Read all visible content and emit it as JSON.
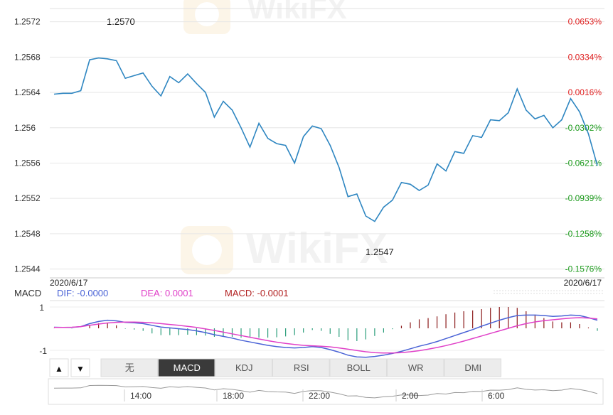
{
  "colors": {
    "price_line": "#2e86c1",
    "grid": "#e6e6e6",
    "pct_up": "#e02020",
    "pct_down": "#1a9a1a",
    "dif_line": "#4a63d6",
    "dea_line": "#e040c8",
    "macd_label": "#b22222",
    "hist_pos": "#8b1a1a",
    "hist_neg": "#2a9d7a",
    "tab_active_bg": "#3a3a3a",
    "tab_bg": "#ececec"
  },
  "price_chart": {
    "start_date_label": "2020/6/17",
    "end_date_label": "2020/6/17",
    "high_label": "1.2570",
    "low_label": "1.2547"
  },
  "macd_panel": {
    "name": "MACD",
    "dif_label": "DIF: -0.0000",
    "dea_label": "DEA: 0.0001",
    "macd_label": "MACD: -0.0001",
    "y_ticks": [
      "1",
      "-1"
    ]
  },
  "controls": {
    "up_arrow": "▲",
    "down_arrow": "▼",
    "tabs": [
      {
        "label": "无",
        "active": false
      },
      {
        "label": "MACD",
        "active": true
      },
      {
        "label": "KDJ",
        "active": false
      },
      {
        "label": "RSI",
        "active": false
      },
      {
        "label": "BOLL",
        "active": false
      },
      {
        "label": "WR",
        "active": false
      },
      {
        "label": "DMI",
        "active": false
      }
    ]
  },
  "navigator": {
    "time_labels": [
      "14:00",
      "18:00",
      "22:00",
      "2:00",
      "6:00"
    ]
  },
  "chart_data": {
    "type": "line",
    "ylim": [
      1.2543,
      1.25735
    ],
    "y_ticks": [
      "1.2572",
      "1.2568",
      "1.2564",
      "1.256",
      "1.2556",
      "1.2552",
      "1.2548",
      "1.2544"
    ],
    "y_tick_values": [
      1.2572,
      1.2568,
      1.2564,
      1.256,
      1.2556,
      1.2552,
      1.2548,
      1.2544
    ],
    "right_ticks": [
      "0.0653%",
      "0.0334%",
      "0.0016%",
      "-0.0302%",
      "-0.0621%",
      "-0.0939%",
      "-0.1258%",
      "-0.1576%"
    ],
    "right_tick_values": [
      0.0653,
      0.0334,
      0.0016,
      -0.0302,
      -0.0621,
      -0.0939,
      -0.1258,
      -0.1576
    ],
    "series": [
      {
        "values": [
          1.25638,
          1.25639,
          1.25639,
          1.25642,
          1.25677,
          1.25679,
          1.25678,
          1.25676,
          1.25656,
          1.25659,
          1.25662,
          1.25647,
          1.25636,
          1.25658,
          1.25651,
          1.25661,
          1.2565,
          1.2564,
          1.25612,
          1.2563,
          1.2562,
          1.256,
          1.25578,
          1.25605,
          1.25588,
          1.25582,
          1.2558,
          1.2556,
          1.2559,
          1.25602,
          1.25599,
          1.2558,
          1.25555,
          1.25522,
          1.25525,
          1.255,
          1.25494,
          1.2551,
          1.25518,
          1.25538,
          1.25536,
          1.25529,
          1.25535,
          1.25559,
          1.25551,
          1.25573,
          1.25571,
          1.25591,
          1.25589,
          1.25609,
          1.25608,
          1.25617,
          1.25644,
          1.2562,
          1.2561,
          1.25614,
          1.256,
          1.25609,
          1.25633,
          1.25618,
          1.25593,
          1.25557
        ]
      }
    ],
    "macd": {
      "dif": [
        0.05,
        0.04,
        0.04,
        0.08,
        0.22,
        0.32,
        0.38,
        0.35,
        0.28,
        0.26,
        0.22,
        0.14,
        0.06,
        0.02,
        -0.02,
        -0.06,
        -0.12,
        -0.2,
        -0.3,
        -0.38,
        -0.46,
        -0.56,
        -0.64,
        -0.72,
        -0.8,
        -0.86,
        -0.9,
        -0.92,
        -0.9,
        -0.86,
        -0.9,
        -1.0,
        -1.12,
        -1.26,
        -1.34,
        -1.36,
        -1.32,
        -1.26,
        -1.18,
        -1.08,
        -0.96,
        -0.84,
        -0.74,
        -0.62,
        -0.48,
        -0.34,
        -0.2,
        -0.06,
        0.1,
        0.24,
        0.38,
        0.5,
        0.6,
        0.62,
        0.62,
        0.6,
        0.56,
        0.58,
        0.62,
        0.6,
        0.5,
        0.38
      ],
      "dea": [
        0.04,
        0.04,
        0.05,
        0.08,
        0.14,
        0.2,
        0.25,
        0.28,
        0.29,
        0.29,
        0.28,
        0.26,
        0.22,
        0.18,
        0.14,
        0.09,
        0.04,
        -0.03,
        -0.1,
        -0.18,
        -0.26,
        -0.34,
        -0.42,
        -0.5,
        -0.58,
        -0.65,
        -0.71,
        -0.76,
        -0.8,
        -0.82,
        -0.84,
        -0.87,
        -0.92,
        -0.98,
        -1.04,
        -1.1,
        -1.14,
        -1.16,
        -1.16,
        -1.14,
        -1.1,
        -1.05,
        -0.98,
        -0.9,
        -0.81,
        -0.71,
        -0.6,
        -0.48,
        -0.36,
        -0.24,
        -0.12,
        0.0,
        0.12,
        0.22,
        0.3,
        0.36,
        0.4,
        0.44,
        0.48,
        0.5,
        0.48,
        0.44
      ],
      "histogram": [
        0.01,
        0.0,
        -0.01,
        0.0,
        0.16,
        0.24,
        0.26,
        0.14,
        -0.02,
        -0.06,
        -0.12,
        -0.24,
        -0.32,
        -0.32,
        -0.32,
        -0.3,
        -0.32,
        -0.34,
        -0.4,
        -0.4,
        -0.4,
        -0.44,
        -0.44,
        -0.44,
        -0.44,
        -0.42,
        -0.38,
        -0.32,
        -0.2,
        -0.08,
        -0.12,
        -0.26,
        -0.4,
        -0.56,
        -0.6,
        -0.52,
        -0.36,
        -0.2,
        -0.04,
        0.12,
        0.28,
        0.42,
        0.48,
        0.56,
        0.66,
        0.74,
        0.8,
        0.84,
        0.9,
        0.96,
        1.0,
        1.0,
        0.96,
        0.8,
        0.64,
        0.48,
        0.32,
        0.28,
        0.28,
        0.2,
        0.04,
        -0.12
      ]
    }
  }
}
